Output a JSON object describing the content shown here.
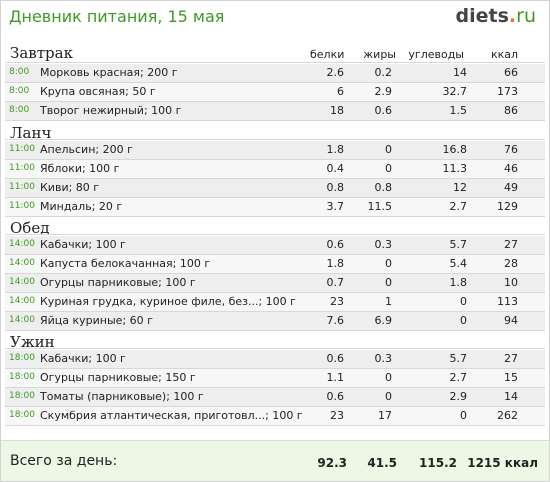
{
  "header": {
    "title": "Дневник питания, 15 мая",
    "logo": {
      "name": "diets",
      "dot": ".",
      "tld": "ru"
    }
  },
  "columns": {
    "protein": "белки",
    "fat": "жиры",
    "carbs": "углеводы",
    "kcal": "ккал"
  },
  "meals": [
    {
      "title": "Завтрак",
      "items": [
        {
          "time": "8:00",
          "food": "Морковь красная; 200 г",
          "protein": "2.6",
          "fat": "0.2",
          "carbs": "14",
          "kcal": "66"
        },
        {
          "time": "8:00",
          "food": "Крупа овсяная; 50 г",
          "protein": "6",
          "fat": "2.9",
          "carbs": "32.7",
          "kcal": "173"
        },
        {
          "time": "8:00",
          "food": "Творог нежирный; 100 г",
          "protein": "18",
          "fat": "0.6",
          "carbs": "1.5",
          "kcal": "86"
        }
      ]
    },
    {
      "title": "Ланч",
      "items": [
        {
          "time": "11:00",
          "food": "Апельсин; 200 г",
          "protein": "1.8",
          "fat": "0",
          "carbs": "16.8",
          "kcal": "76"
        },
        {
          "time": "11:00",
          "food": "Яблоки; 100 г",
          "protein": "0.4",
          "fat": "0",
          "carbs": "11.3",
          "kcal": "46"
        },
        {
          "time": "11:00",
          "food": "Киви; 80 г",
          "protein": "0.8",
          "fat": "0.8",
          "carbs": "12",
          "kcal": "49"
        },
        {
          "time": "11:00",
          "food": "Миндаль; 20 г",
          "protein": "3.7",
          "fat": "11.5",
          "carbs": "2.7",
          "kcal": "129"
        }
      ]
    },
    {
      "title": "Обед",
      "items": [
        {
          "time": "14:00",
          "food": "Кабачки; 100 г",
          "protein": "0.6",
          "fat": "0.3",
          "carbs": "5.7",
          "kcal": "27"
        },
        {
          "time": "14:00",
          "food": "Капуста белокачанная; 100 г",
          "protein": "1.8",
          "fat": "0",
          "carbs": "5.4",
          "kcal": "28"
        },
        {
          "time": "14:00",
          "food": "Огурцы парниковые; 100 г",
          "protein": "0.7",
          "fat": "0",
          "carbs": "1.8",
          "kcal": "10"
        },
        {
          "time": "14:00",
          "food": "Куриная грудка, куриное филе, без...; 100 г",
          "protein": "23",
          "fat": "1",
          "carbs": "0",
          "kcal": "113"
        },
        {
          "time": "14:00",
          "food": "Яйца куриные; 60 г",
          "protein": "7.6",
          "fat": "6.9",
          "carbs": "0",
          "kcal": "94"
        }
      ]
    },
    {
      "title": "Ужин",
      "items": [
        {
          "time": "18:00",
          "food": "Кабачки; 100 г",
          "protein": "0.6",
          "fat": "0.3",
          "carbs": "5.7",
          "kcal": "27"
        },
        {
          "time": "18:00",
          "food": "Огурцы парниковые; 150 г",
          "protein": "1.1",
          "fat": "0",
          "carbs": "2.7",
          "kcal": "15"
        },
        {
          "time": "18:00",
          "food": "Томаты (парниковые); 100 г",
          "protein": "0.6",
          "fat": "0",
          "carbs": "2.9",
          "kcal": "14"
        },
        {
          "time": "18:00",
          "food": "Скумбрия атлантическая, приготовл...; 100 г",
          "protein": "23",
          "fat": "17",
          "carbs": "0",
          "kcal": "262"
        }
      ]
    }
  ],
  "total": {
    "label": "Всего за день:",
    "protein": "92.3",
    "fat": "41.5",
    "carbs": "115.2",
    "kcal": "1215 ккал"
  },
  "colors": {
    "accent": "#3f9a24",
    "logo_dot": "#e9722e",
    "total_bg": "#edf7e6"
  }
}
